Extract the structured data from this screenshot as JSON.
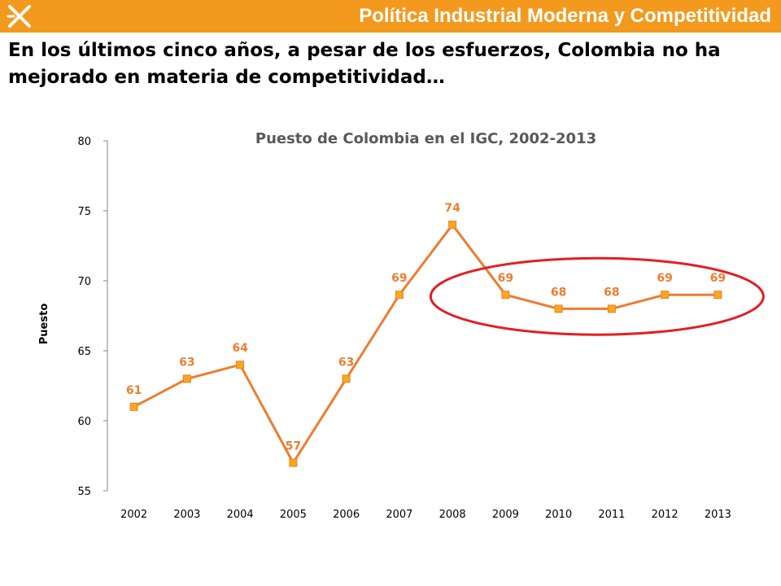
{
  "header": {
    "title": "Política Industrial Moderna y Competitividad",
    "logo_icon": "x-logo-icon"
  },
  "headline": "En los últimos cinco años, a pesar de los esfuerzos, Colombia no ha mejorado en materia de competitividad…",
  "colors": {
    "header_bg": "#f39a1e",
    "series_line": "#ed7d31",
    "marker_fill": "#f7a81b",
    "label_text": "#ed7d31",
    "highlight_ellipse": "#e31e24"
  },
  "chart_data": {
    "type": "line",
    "title": "Puesto de Colombia en el IGC, 2002-2013",
    "xlabel": "",
    "ylabel": "Puesto",
    "categories": [
      "2002",
      "2003",
      "2004",
      "2005",
      "2006",
      "2007",
      "2008",
      "2009",
      "2010",
      "2011",
      "2012",
      "2013"
    ],
    "series": [
      {
        "values": [
          61,
          63,
          64,
          57,
          63,
          69,
          74,
          69,
          68,
          68,
          69,
          69
        ]
      }
    ],
    "ylim": [
      55,
      80
    ],
    "yticks": [
      55,
      60,
      65,
      70,
      75,
      80
    ],
    "grid": false,
    "legend": "none",
    "data_labels": true,
    "highlight": {
      "shape": "ellipse",
      "from_category": "2009",
      "to_category": "2013"
    }
  }
}
